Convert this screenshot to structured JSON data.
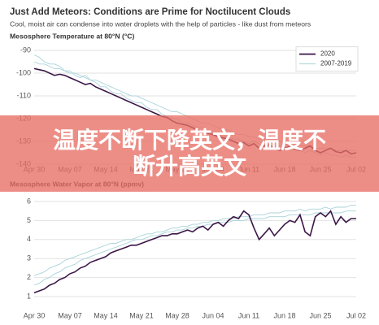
{
  "header": {
    "title": "Just Add Meteors: Conditions are Prime for Noctilucent Clouds",
    "subtitle": "Cool, moist air can condense into water droplets with the help of particles - like dust from meteors"
  },
  "overlay": {
    "text": "温度不断下降英文，温度不断升高英文"
  },
  "chart_data": [
    {
      "type": "line",
      "title": "Mesosphere Temperature at 80°N (°C)",
      "legend": "upper right",
      "grid": true,
      "categories": [
        "Apr 30",
        null,
        null,
        null,
        null,
        null,
        null,
        "May 07",
        null,
        null,
        null,
        null,
        null,
        null,
        "May 14",
        null,
        null,
        null,
        null,
        null,
        null,
        "May 21",
        null,
        null,
        null,
        null,
        null,
        null,
        "May 28",
        null,
        null,
        null,
        null,
        null,
        null,
        "Jun 04",
        null,
        null,
        null,
        null,
        null,
        null,
        "Jun 11",
        null,
        null,
        null,
        null,
        null,
        null,
        "Jun 18",
        null,
        null,
        null,
        null,
        null,
        null,
        "Jun 25",
        null,
        null,
        null,
        null,
        null,
        null,
        "Jul 02"
      ],
      "ylim": [
        -141,
        -87
      ],
      "yticks": [
        -90,
        -100,
        -110,
        -120,
        -130,
        -140
      ],
      "series": [
        {
          "name": "2007-2019",
          "color": "#a9d3d9",
          "values": [
            -95,
            -96,
            -96,
            -97,
            -98,
            -98,
            -99,
            -100,
            -100,
            -101,
            -102,
            -103,
            -103,
            -104,
            -105,
            -106,
            -107,
            -108,
            -109,
            -110,
            -110,
            -111,
            -112,
            -113,
            -114,
            -115,
            -116,
            -117,
            -117,
            -118,
            -119,
            -120,
            -121,
            -122,
            -122,
            -123,
            -124,
            -125,
            -125,
            -126,
            -127,
            -127,
            -128,
            -128,
            -129,
            -129,
            -130,
            -130,
            -130,
            -131,
            -131,
            -131,
            -132,
            -132,
            -132,
            -133,
            -133,
            -133,
            -133,
            -134,
            -134,
            -134,
            -134,
            -134
          ]
        },
        {
          "name": "2007-2019",
          "color": "#a9d3d9",
          "values": [
            -92,
            -93,
            -95,
            -96,
            -96,
            -97,
            -99,
            -99,
            -101,
            -102,
            -101,
            -103,
            -104,
            -106,
            -106,
            -108,
            -109,
            -109,
            -111,
            -112,
            -113,
            -113,
            -115,
            -116,
            -116,
            -118,
            -119,
            -120,
            -120,
            -122,
            -122,
            -123,
            -124,
            -124,
            -126,
            -126,
            -127,
            -128,
            -128,
            -129,
            -129,
            -130,
            -131,
            -130,
            -131,
            -132,
            -132,
            -133,
            -132,
            -133,
            -134,
            -133,
            -134,
            -135,
            -134,
            -135,
            -136,
            -135,
            -136,
            -136,
            -137,
            -136,
            -137,
            -137
          ]
        },
        {
          "name": "2020",
          "color": "#3b1747",
          "values": [
            -98,
            -98.5,
            -99,
            -100,
            -101,
            -100.5,
            -101,
            -102,
            -103,
            -104,
            -105,
            -104.5,
            -106,
            -107,
            -108,
            -109,
            -110,
            -111,
            -112,
            -113,
            -114,
            -115,
            -116,
            -117,
            -118,
            -119,
            -119.5,
            -121,
            -122,
            -122.5,
            -123,
            -124,
            -125,
            -126,
            -126.5,
            -127,
            -128,
            -128.5,
            -129,
            -130,
            -131,
            -130.5,
            -132,
            -131,
            -133,
            -132,
            -131.5,
            -133,
            -134,
            -133,
            -132,
            -133.5,
            -134,
            -133,
            -132,
            -134,
            -135,
            -134,
            -133,
            -134.5,
            -135,
            -134,
            -135.5,
            -135
          ]
        }
      ]
    },
    {
      "type": "line",
      "title": "Mesosphere Water Vapor at 80°N (ppmv)",
      "grid": true,
      "categories": [
        "Apr 30",
        null,
        null,
        null,
        null,
        null,
        null,
        "May 07",
        null,
        null,
        null,
        null,
        null,
        null,
        "May 14",
        null,
        null,
        null,
        null,
        null,
        null,
        "May 21",
        null,
        null,
        null,
        null,
        null,
        null,
        "May 28",
        null,
        null,
        null,
        null,
        null,
        null,
        "Jun 04",
        null,
        null,
        null,
        null,
        null,
        null,
        "Jun 11",
        null,
        null,
        null,
        null,
        null,
        null,
        "Jun 18",
        null,
        null,
        null,
        null,
        null,
        null,
        "Jun 25",
        null,
        null,
        null,
        null,
        null,
        null,
        "Jul 02"
      ],
      "ylim": [
        0.6,
        6.4
      ],
      "yticks": [
        1,
        2,
        3,
        4,
        5,
        6
      ],
      "series": [
        {
          "name": "2007-2019",
          "color": "#a9d3d9",
          "values": [
            1.6,
            1.7,
            1.9,
            2.0,
            2.2,
            2.3,
            2.5,
            2.6,
            2.7,
            2.9,
            3.0,
            3.1,
            3.2,
            3.3,
            3.4,
            3.5,
            3.6,
            3.7,
            3.8,
            3.9,
            4.0,
            4.0,
            4.1,
            4.2,
            4.2,
            4.3,
            4.4,
            4.4,
            4.5,
            4.5,
            4.6,
            4.6,
            4.7,
            4.7,
            4.8,
            4.8,
            4.9,
            4.9,
            4.9,
            5.0,
            5.0,
            5.0,
            5.1,
            5.1,
            5.1,
            5.1,
            5.2,
            5.2,
            5.2,
            5.2,
            5.3,
            5.3,
            5.3,
            5.3,
            5.3,
            5.4,
            5.4,
            5.4,
            5.4,
            5.4,
            5.4,
            5.5,
            5.5,
            5.5
          ]
        },
        {
          "name": "2007-2019",
          "color": "#a9d3d9",
          "values": [
            2.1,
            2.2,
            2.3,
            2.5,
            2.6,
            2.7,
            2.9,
            3.0,
            3.1,
            3.2,
            3.3,
            3.4,
            3.5,
            3.6,
            3.7,
            3.8,
            3.8,
            3.9,
            4.0,
            4.0,
            4.1,
            4.2,
            4.3,
            4.3,
            4.4,
            4.4,
            4.5,
            4.6,
            4.6,
            4.7,
            4.7,
            4.8,
            4.8,
            4.9,
            4.9,
            5.0,
            5.0,
            5.1,
            5.1,
            5.1,
            5.2,
            5.2,
            5.2,
            5.3,
            5.3,
            5.3,
            5.4,
            5.4,
            5.4,
            5.5,
            5.5,
            5.5,
            5.6,
            5.5,
            5.6,
            5.6,
            5.6,
            5.7,
            5.6,
            5.7,
            5.7,
            5.7,
            5.8,
            5.8
          ]
        },
        {
          "name": "2020",
          "color": "#3b1747",
          "values": [
            1.2,
            1.3,
            1.4,
            1.6,
            1.7,
            1.9,
            2.0,
            2.2,
            2.3,
            2.5,
            2.6,
            2.8,
            2.9,
            3.0,
            3.1,
            3.3,
            3.4,
            3.5,
            3.6,
            3.7,
            3.7,
            3.8,
            3.9,
            4.0,
            4.1,
            4.2,
            4.2,
            4.3,
            4.3,
            4.4,
            4.5,
            4.4,
            4.6,
            4.7,
            4.5,
            4.8,
            4.9,
            4.7,
            5.0,
            5.2,
            5.1,
            5.5,
            5.3,
            4.6,
            4.0,
            4.3,
            4.6,
            4.2,
            4.5,
            4.8,
            5.0,
            4.9,
            5.3,
            4.4,
            4.2,
            5.2,
            5.4,
            5.2,
            5.5,
            4.8,
            5.2,
            4.9,
            5.1,
            5.1
          ]
        }
      ]
    }
  ]
}
